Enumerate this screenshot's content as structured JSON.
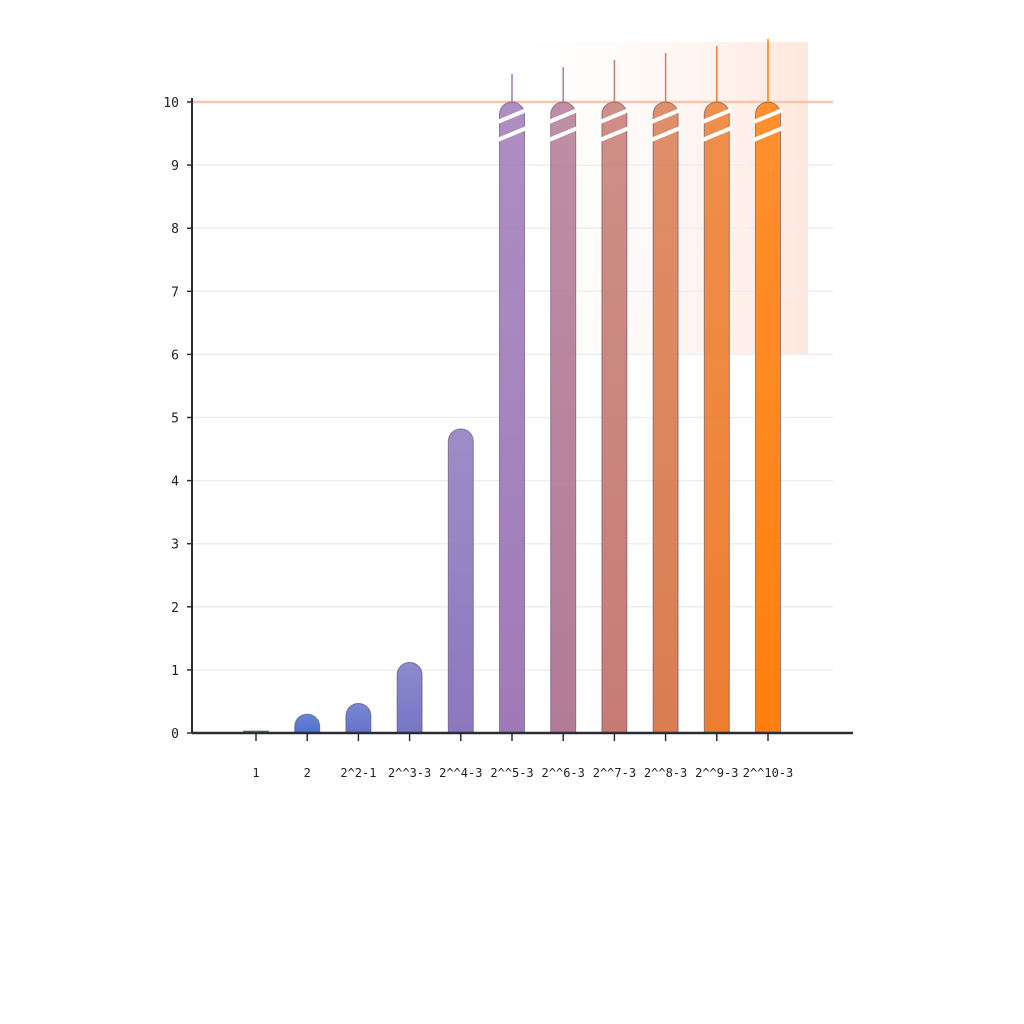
{
  "chart_data": {
    "type": "bar",
    "title": "",
    "xlabel": "",
    "ylabel": "",
    "ylim": [
      0,
      10
    ],
    "yticks": [
      "0",
      "1",
      "2",
      "3",
      "4",
      "5",
      "6",
      "7",
      "8",
      "9",
      "10"
    ],
    "grid": true,
    "legend": "none",
    "categories": [
      "1",
      "2",
      "2^2-1",
      "2^^3-3",
      "2^^4-3",
      "2^^5-3",
      "2^^6-3",
      "2^^7-3",
      "2^^8-3",
      "2^^9-3",
      "2^^10-3"
    ],
    "values": [
      0.03,
      0.3,
      0.47,
      1.12,
      4.82,
      10,
      10,
      10,
      10,
      10,
      10
    ],
    "clipped": [
      false,
      false,
      false,
      false,
      false,
      true,
      true,
      true,
      true,
      true,
      true
    ],
    "colors": {
      "start": "#3a6fd6",
      "mid": "#a07ab8",
      "end": "#ff7f0e",
      "axis": "#2a2d33",
      "grid": "#eeeeee",
      "limit_line": "#f5c6ad"
    }
  }
}
